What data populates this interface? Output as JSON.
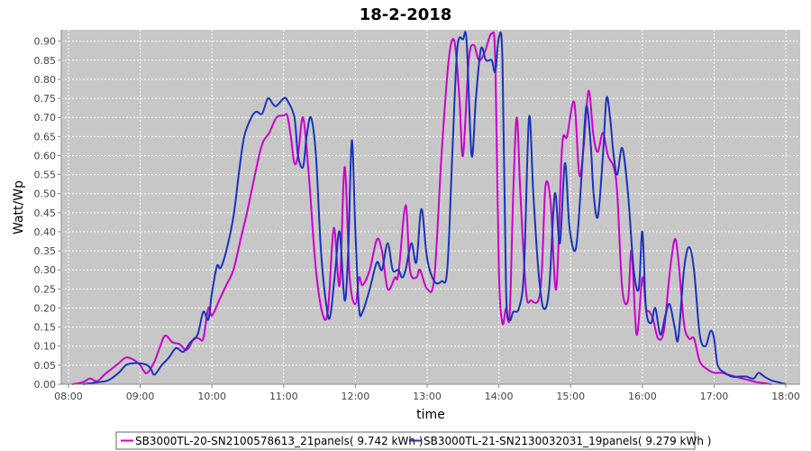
{
  "chart_data": {
    "type": "line",
    "title": "18-2-2018",
    "xlabel": "time",
    "ylabel": "Watt/Wp",
    "xlim": [
      7.9,
      18.2
    ],
    "ylim": [
      0.0,
      0.93
    ],
    "x_ticks": [
      8,
      9,
      10,
      11,
      12,
      13,
      14,
      15,
      16,
      17,
      18
    ],
    "x_tick_labels": [
      "08:00",
      "09:00",
      "10:00",
      "11:00",
      "12:00",
      "13:00",
      "14:00",
      "15:00",
      "16:00",
      "17:00",
      "18:00"
    ],
    "y_ticks": [
      0.0,
      0.05,
      0.1,
      0.15,
      0.2,
      0.25,
      0.3,
      0.35,
      0.4,
      0.45,
      0.5,
      0.55,
      0.6,
      0.65,
      0.7,
      0.75,
      0.8,
      0.85,
      0.9
    ],
    "y_tick_labels": [
      "0.00",
      "0.05",
      "0.10",
      "0.15",
      "0.20",
      "0.25",
      "0.30",
      "0.35",
      "0.40",
      "0.45",
      "0.50",
      "0.55",
      "0.60",
      "0.65",
      "0.70",
      "0.75",
      "0.80",
      "0.85",
      "0.90"
    ],
    "grid": true,
    "legend_position": "bottom",
    "series": [
      {
        "name": "SB3000TL-20-SN2100578613_21panels( 9.742 kWh )",
        "color": "#cc00cc",
        "points": [
          [
            8.05,
            0.0
          ],
          [
            8.2,
            0.005
          ],
          [
            8.3,
            0.015
          ],
          [
            8.4,
            0.008
          ],
          [
            8.5,
            0.025
          ],
          [
            8.6,
            0.04
          ],
          [
            8.7,
            0.055
          ],
          [
            8.8,
            0.07
          ],
          [
            8.9,
            0.065
          ],
          [
            9.0,
            0.05
          ],
          [
            9.05,
            0.035
          ],
          [
            9.1,
            0.03
          ],
          [
            9.2,
            0.06
          ],
          [
            9.28,
            0.1
          ],
          [
            9.35,
            0.128
          ],
          [
            9.45,
            0.11
          ],
          [
            9.55,
            0.105
          ],
          [
            9.65,
            0.09
          ],
          [
            9.75,
            0.12
          ],
          [
            9.82,
            0.12
          ],
          [
            9.88,
            0.12
          ],
          [
            9.95,
            0.2
          ],
          [
            10.0,
            0.18
          ],
          [
            10.1,
            0.22
          ],
          [
            10.2,
            0.26
          ],
          [
            10.3,
            0.3
          ],
          [
            10.4,
            0.38
          ],
          [
            10.5,
            0.46
          ],
          [
            10.6,
            0.55
          ],
          [
            10.7,
            0.63
          ],
          [
            10.8,
            0.66
          ],
          [
            10.9,
            0.7
          ],
          [
            11.0,
            0.705
          ],
          [
            11.05,
            0.705
          ],
          [
            11.1,
            0.65
          ],
          [
            11.15,
            0.58
          ],
          [
            11.2,
            0.6
          ],
          [
            11.27,
            0.7
          ],
          [
            11.35,
            0.55
          ],
          [
            11.45,
            0.3
          ],
          [
            11.55,
            0.18
          ],
          [
            11.62,
            0.2
          ],
          [
            11.7,
            0.41
          ],
          [
            11.78,
            0.26
          ],
          [
            11.85,
            0.57
          ],
          [
            11.92,
            0.28
          ],
          [
            12.0,
            0.21
          ],
          [
            12.05,
            0.28
          ],
          [
            12.1,
            0.26
          ],
          [
            12.2,
            0.3
          ],
          [
            12.3,
            0.38
          ],
          [
            12.37,
            0.35
          ],
          [
            12.45,
            0.25
          ],
          [
            12.55,
            0.28
          ],
          [
            12.6,
            0.29
          ],
          [
            12.7,
            0.47
          ],
          [
            12.76,
            0.3
          ],
          [
            12.85,
            0.28
          ],
          [
            12.9,
            0.3
          ],
          [
            13.0,
            0.25
          ],
          [
            13.1,
            0.28
          ],
          [
            13.2,
            0.6
          ],
          [
            13.3,
            0.85
          ],
          [
            13.38,
            0.9
          ],
          [
            13.45,
            0.75
          ],
          [
            13.5,
            0.6
          ],
          [
            13.58,
            0.85
          ],
          [
            13.65,
            0.89
          ],
          [
            13.72,
            0.85
          ],
          [
            13.8,
            0.87
          ],
          [
            13.9,
            0.92
          ],
          [
            13.95,
            0.85
          ],
          [
            14.0,
            0.3
          ],
          [
            14.05,
            0.16
          ],
          [
            14.1,
            0.2
          ],
          [
            14.15,
            0.18
          ],
          [
            14.2,
            0.5
          ],
          [
            14.25,
            0.7
          ],
          [
            14.3,
            0.5
          ],
          [
            14.38,
            0.24
          ],
          [
            14.45,
            0.22
          ],
          [
            14.55,
            0.22
          ],
          [
            14.6,
            0.3
          ],
          [
            14.65,
            0.52
          ],
          [
            14.72,
            0.48
          ],
          [
            14.8,
            0.25
          ],
          [
            14.88,
            0.62
          ],
          [
            14.95,
            0.65
          ],
          [
            15.05,
            0.74
          ],
          [
            15.12,
            0.55
          ],
          [
            15.18,
            0.62
          ],
          [
            15.25,
            0.77
          ],
          [
            15.32,
            0.65
          ],
          [
            15.38,
            0.61
          ],
          [
            15.45,
            0.66
          ],
          [
            15.52,
            0.6
          ],
          [
            15.6,
            0.57
          ],
          [
            15.65,
            0.5
          ],
          [
            15.72,
            0.25
          ],
          [
            15.8,
            0.22
          ],
          [
            15.85,
            0.35
          ],
          [
            15.92,
            0.13
          ],
          [
            16.0,
            0.28
          ],
          [
            16.05,
            0.2
          ],
          [
            16.1,
            0.19
          ],
          [
            16.15,
            0.17
          ],
          [
            16.22,
            0.12
          ],
          [
            16.3,
            0.14
          ],
          [
            16.38,
            0.29
          ],
          [
            16.45,
            0.38
          ],
          [
            16.5,
            0.33
          ],
          [
            16.58,
            0.16
          ],
          [
            16.65,
            0.12
          ],
          [
            16.72,
            0.12
          ],
          [
            16.8,
            0.06
          ],
          [
            16.9,
            0.04
          ],
          [
            17.0,
            0.03
          ],
          [
            17.1,
            0.03
          ],
          [
            17.2,
            0.025
          ],
          [
            17.3,
            0.02
          ],
          [
            17.4,
            0.015
          ],
          [
            17.5,
            0.01
          ],
          [
            17.6,
            0.005
          ],
          [
            17.7,
            0.003
          ],
          [
            17.8,
            0.0
          ]
        ]
      },
      {
        "name": "SB3000TL-21-SN2130032031_19panels( 9.279 kWh )",
        "color": "#1a33bb",
        "points": [
          [
            8.2,
            0.0
          ],
          [
            8.4,
            0.005
          ],
          [
            8.55,
            0.01
          ],
          [
            8.7,
            0.03
          ],
          [
            8.8,
            0.05
          ],
          [
            8.9,
            0.055
          ],
          [
            9.0,
            0.055
          ],
          [
            9.1,
            0.05
          ],
          [
            9.15,
            0.04
          ],
          [
            9.2,
            0.025
          ],
          [
            9.3,
            0.05
          ],
          [
            9.4,
            0.07
          ],
          [
            9.5,
            0.095
          ],
          [
            9.6,
            0.085
          ],
          [
            9.7,
            0.11
          ],
          [
            9.8,
            0.13
          ],
          [
            9.88,
            0.19
          ],
          [
            9.95,
            0.17
          ],
          [
            10.0,
            0.24
          ],
          [
            10.07,
            0.31
          ],
          [
            10.12,
            0.305
          ],
          [
            10.2,
            0.35
          ],
          [
            10.3,
            0.44
          ],
          [
            10.38,
            0.56
          ],
          [
            10.45,
            0.65
          ],
          [
            10.55,
            0.7
          ],
          [
            10.62,
            0.715
          ],
          [
            10.7,
            0.71
          ],
          [
            10.78,
            0.75
          ],
          [
            10.85,
            0.735
          ],
          [
            10.9,
            0.73
          ],
          [
            11.0,
            0.75
          ],
          [
            11.05,
            0.745
          ],
          [
            11.15,
            0.7
          ],
          [
            11.2,
            0.6
          ],
          [
            11.27,
            0.57
          ],
          [
            11.32,
            0.65
          ],
          [
            11.38,
            0.7
          ],
          [
            11.45,
            0.6
          ],
          [
            11.52,
            0.35
          ],
          [
            11.6,
            0.2
          ],
          [
            11.65,
            0.18
          ],
          [
            11.72,
            0.3
          ],
          [
            11.78,
            0.4
          ],
          [
            11.85,
            0.22
          ],
          [
            11.9,
            0.35
          ],
          [
            11.95,
            0.64
          ],
          [
            12.0,
            0.4
          ],
          [
            12.05,
            0.2
          ],
          [
            12.1,
            0.19
          ],
          [
            12.2,
            0.25
          ],
          [
            12.3,
            0.32
          ],
          [
            12.37,
            0.3
          ],
          [
            12.45,
            0.37
          ],
          [
            12.52,
            0.3
          ],
          [
            12.6,
            0.3
          ],
          [
            12.65,
            0.28
          ],
          [
            12.7,
            0.3
          ],
          [
            12.78,
            0.37
          ],
          [
            12.85,
            0.32
          ],
          [
            12.92,
            0.46
          ],
          [
            13.0,
            0.33
          ],
          [
            13.1,
            0.27
          ],
          [
            13.2,
            0.27
          ],
          [
            13.28,
            0.3
          ],
          [
            13.35,
            0.6
          ],
          [
            13.42,
            0.88
          ],
          [
            13.5,
            0.905
          ],
          [
            13.55,
            0.9
          ],
          [
            13.62,
            0.6
          ],
          [
            13.68,
            0.75
          ],
          [
            13.75,
            0.88
          ],
          [
            13.82,
            0.85
          ],
          [
            13.9,
            0.85
          ],
          [
            13.95,
            0.82
          ],
          [
            14.0,
            0.91
          ],
          [
            14.05,
            0.85
          ],
          [
            14.1,
            0.25
          ],
          [
            14.15,
            0.17
          ],
          [
            14.2,
            0.19
          ],
          [
            14.28,
            0.2
          ],
          [
            14.35,
            0.3
          ],
          [
            14.42,
            0.7
          ],
          [
            14.48,
            0.5
          ],
          [
            14.55,
            0.3
          ],
          [
            14.62,
            0.2
          ],
          [
            14.7,
            0.25
          ],
          [
            14.78,
            0.5
          ],
          [
            14.85,
            0.37
          ],
          [
            14.92,
            0.58
          ],
          [
            14.98,
            0.42
          ],
          [
            15.05,
            0.35
          ],
          [
            15.1,
            0.4
          ],
          [
            15.17,
            0.6
          ],
          [
            15.22,
            0.73
          ],
          [
            15.28,
            0.63
          ],
          [
            15.32,
            0.5
          ],
          [
            15.38,
            0.44
          ],
          [
            15.45,
            0.6
          ],
          [
            15.5,
            0.75
          ],
          [
            15.55,
            0.7
          ],
          [
            15.6,
            0.6
          ],
          [
            15.65,
            0.55
          ],
          [
            15.72,
            0.62
          ],
          [
            15.8,
            0.5
          ],
          [
            15.88,
            0.3
          ],
          [
            15.95,
            0.25
          ],
          [
            16.0,
            0.4
          ],
          [
            16.05,
            0.2
          ],
          [
            16.12,
            0.16
          ],
          [
            16.18,
            0.2
          ],
          [
            16.25,
            0.13
          ],
          [
            16.32,
            0.18
          ],
          [
            16.38,
            0.21
          ],
          [
            16.45,
            0.15
          ],
          [
            16.5,
            0.12
          ],
          [
            16.58,
            0.3
          ],
          [
            16.65,
            0.36
          ],
          [
            16.72,
            0.3
          ],
          [
            16.8,
            0.13
          ],
          [
            16.88,
            0.1
          ],
          [
            16.95,
            0.14
          ],
          [
            17.0,
            0.12
          ],
          [
            17.05,
            0.05
          ],
          [
            17.15,
            0.03
          ],
          [
            17.25,
            0.02
          ],
          [
            17.35,
            0.02
          ],
          [
            17.45,
            0.02
          ],
          [
            17.55,
            0.015
          ],
          [
            17.62,
            0.03
          ],
          [
            17.7,
            0.02
          ],
          [
            17.8,
            0.01
          ],
          [
            17.9,
            0.005
          ],
          [
            18.0,
            0.0
          ]
        ]
      }
    ]
  }
}
